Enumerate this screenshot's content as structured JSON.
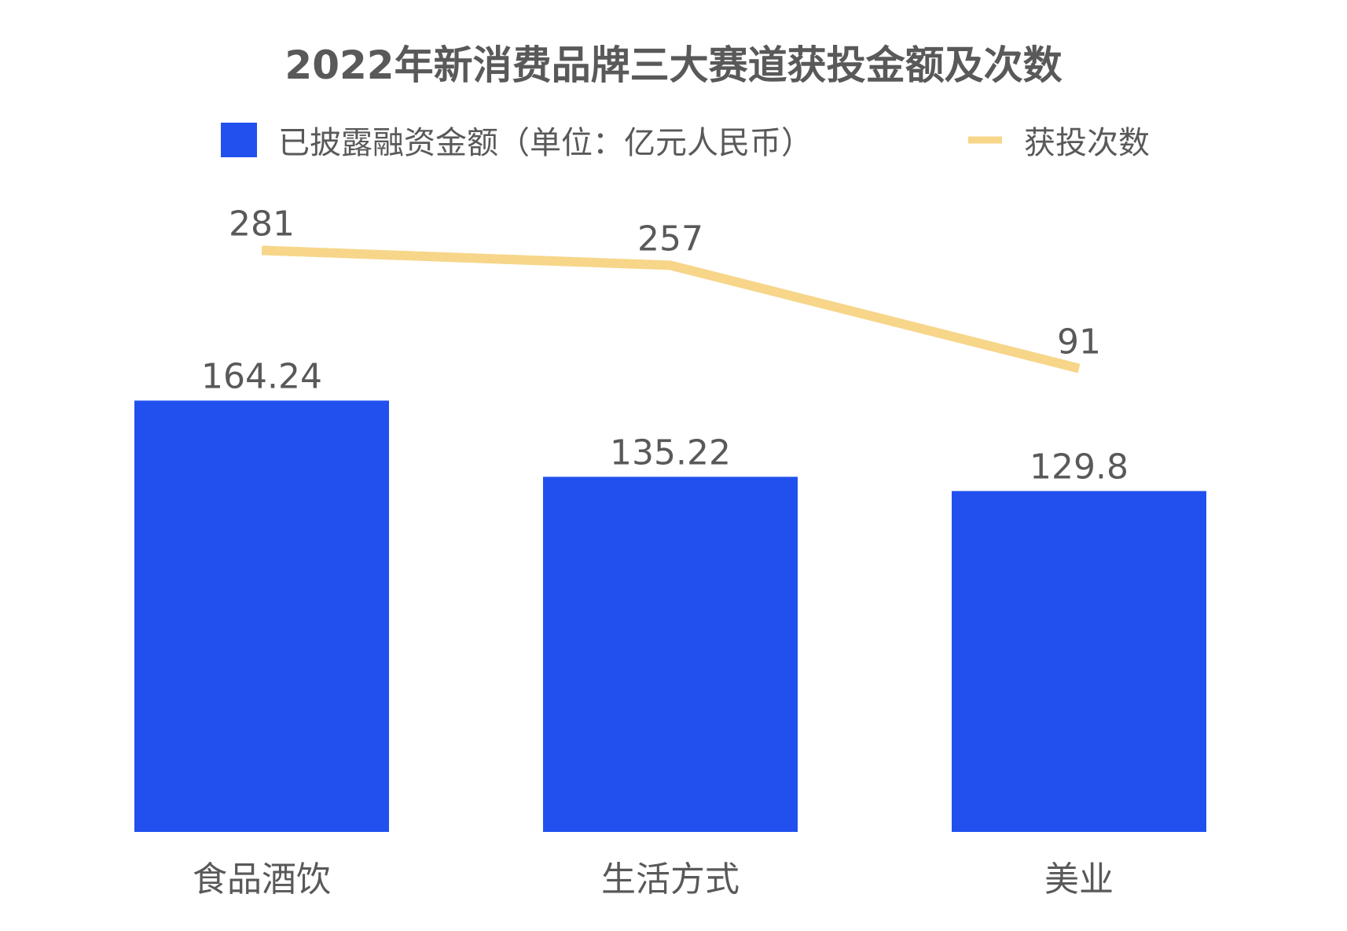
{
  "chart_data": {
    "type": "bar",
    "title": "2022年新消费品牌三大赛道获投金额及次数",
    "categories": [
      "食品酒饮",
      "生活方式",
      "美业"
    ],
    "series": [
      {
        "name": "已披露融资金额（单位：亿元人民币）",
        "type": "bar",
        "values": [
          164.24,
          135.22,
          129.8
        ],
        "labels": [
          "164.24",
          "135.22",
          "129.8"
        ]
      },
      {
        "name": "获投次数",
        "type": "line",
        "values": [
          281,
          257,
          91
        ],
        "labels": [
          "281",
          "257",
          "91"
        ]
      }
    ],
    "legend_position": "top",
    "grid": false,
    "colors": {
      "bar": "#2150ee",
      "line": "#f7d68a",
      "title": "#595959",
      "label": "#595959",
      "axis_label": "#595959"
    }
  }
}
